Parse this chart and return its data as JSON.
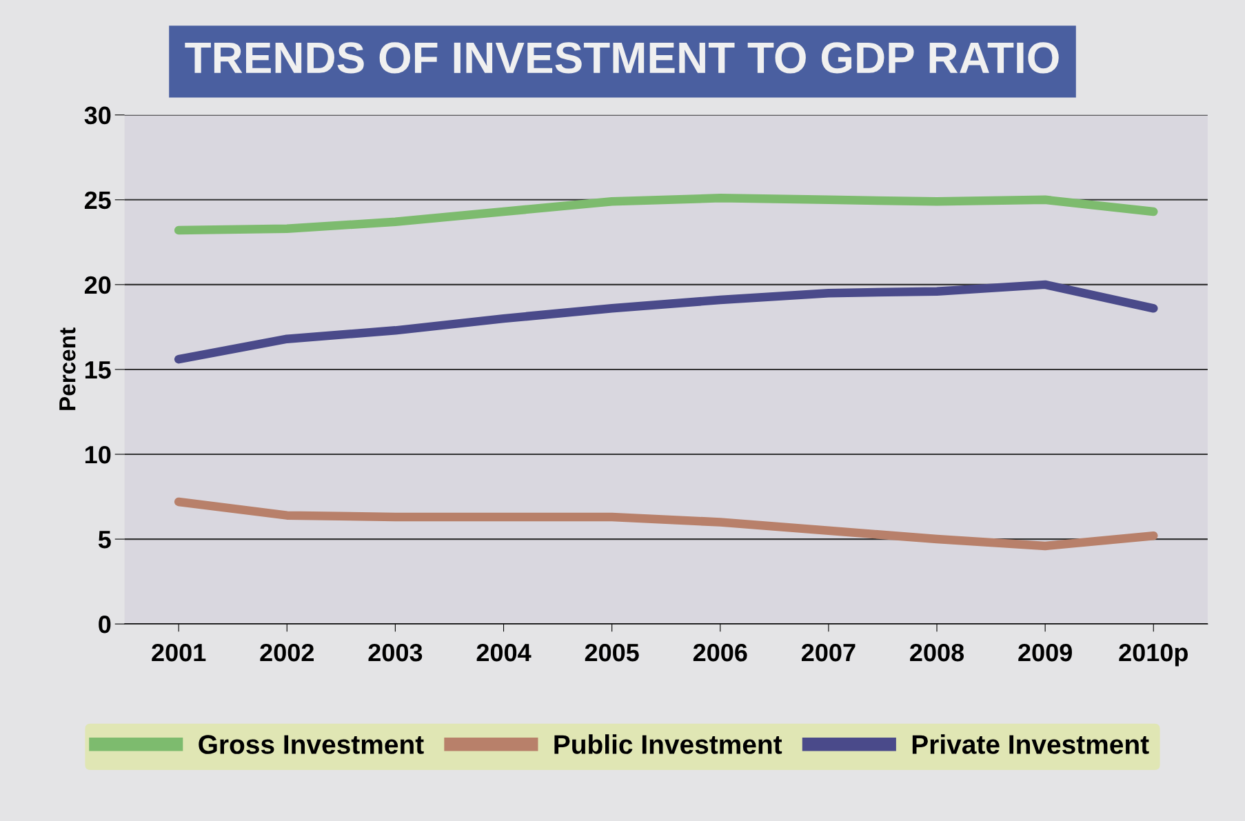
{
  "chart_data": {
    "type": "line",
    "title": "TRENDS OF INVESTMENT TO GDP RATIO",
    "ylabel": "Percent",
    "categories": [
      "2001",
      "2002",
      "2003",
      "2004",
      "2005",
      "2006",
      "2007",
      "2008",
      "2009",
      "2010p"
    ],
    "series": [
      {
        "name": "Gross Investment",
        "color": "#7dbb6e",
        "values": [
          23.2,
          23.3,
          23.7,
          24.3,
          24.9,
          25.1,
          25.0,
          24.9,
          25.0,
          24.3
        ]
      },
      {
        "name": "Public Investment",
        "color": "#b8806a",
        "values": [
          7.2,
          6.4,
          6.3,
          6.3,
          6.3,
          6.0,
          5.5,
          5.0,
          4.6,
          5.2
        ]
      },
      {
        "name": "Private Investment",
        "color": "#4a4a8a",
        "values": [
          15.6,
          16.8,
          17.3,
          18.0,
          18.6,
          19.1,
          19.5,
          19.6,
          20.0,
          18.6
        ]
      }
    ],
    "ylim": [
      0,
      30
    ],
    "yticks": [
      0,
      5,
      10,
      15,
      20,
      25,
      30
    ],
    "grid": "y",
    "legend": "bottom",
    "line_style": "solid"
  }
}
